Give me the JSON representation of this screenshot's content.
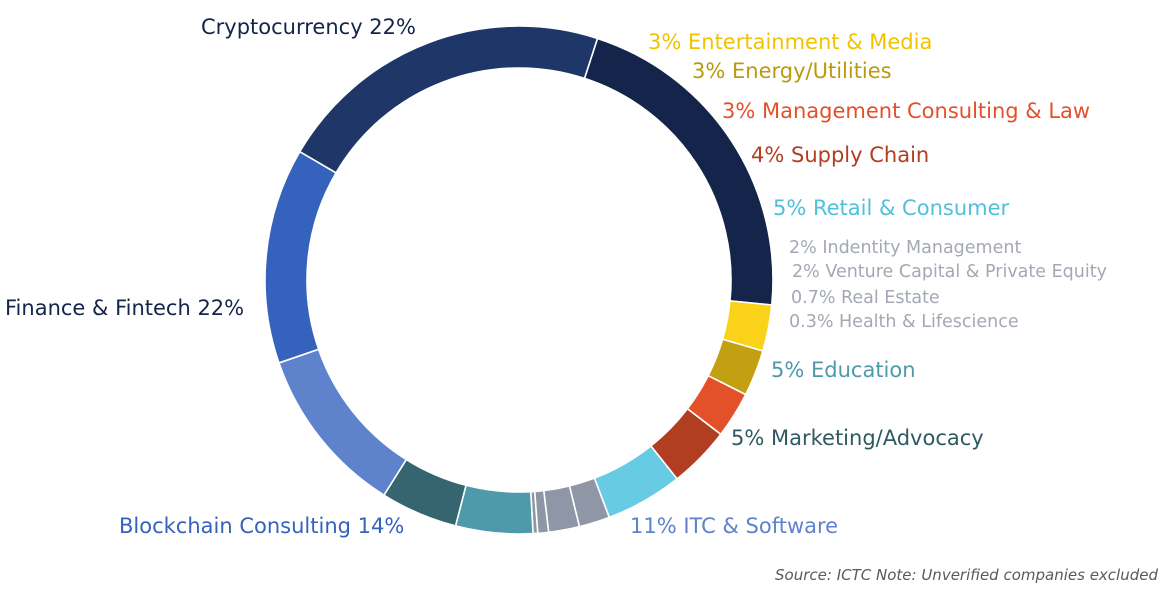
{
  "chart_data": {
    "type": "pie",
    "style": "donut",
    "slices": [
      {
        "label": "Cryptocurrency 22%",
        "value": 22,
        "color": "#15244a"
      },
      {
        "label": "3% Entertainment & Media",
        "value": 3,
        "color": "#fad21a"
      },
      {
        "label": "3% Energy/Utilities",
        "value": 3,
        "color": "#c3a011"
      },
      {
        "label": "3% Management Consulting & Law",
        "value": 3,
        "color": "#e4502a"
      },
      {
        "label": "4% Supply Chain",
        "value": 4,
        "color": "#b13e20"
      },
      {
        "label": "5% Retail & Consumer",
        "value": 5,
        "color": "#67cbe3"
      },
      {
        "label": "2% Indentity Management",
        "value": 2,
        "color": "#8f96a6"
      },
      {
        "label": "2% Venture Capital & Private Equity",
        "value": 2,
        "color": "#8f96a6"
      },
      {
        "label": "0.7% Real Estate",
        "value": 0.7,
        "color": "#8f96a6"
      },
      {
        "label": "0.3% Health & Lifescience",
        "value": 0.3,
        "color": "#8f96a6"
      },
      {
        "label": "5% Education",
        "value": 5,
        "color": "#4e9aab"
      },
      {
        "label": "5% Marketing/Advocacy",
        "value": 5,
        "color": "#356670"
      },
      {
        "label": "11% ITC & Software",
        "value": 11,
        "color": "#5e82cb"
      },
      {
        "label": "Blockchain Consulting 14%",
        "value": 14,
        "color": "#3562bd"
      },
      {
        "label": "Finance & Fintech 22%",
        "value": 22,
        "color": "#1f3668"
      }
    ],
    "label_colors": {
      "Cryptocurrency 22%": "#15244a",
      "3% Entertainment & Media": "#f0c200",
      "3% Energy/Utilities": "#b99a10",
      "3% Management Consulting & Law": "#e4502a",
      "4% Supply Chain": "#b13e20",
      "5% Retail & Consumer": "#4fc0dd",
      "2% Indentity Management": "#a3a8b4",
      "2% Venture Capital & Private Equity": "#a3a8b4",
      "0.7% Real Estate": "#a3a8b4",
      "0.3% Health & Lifescience": "#a3a8b4",
      "5% Education": "#4e9aab",
      "5% Marketing/Advocacy": "#2e5a63",
      "11% ITC & Software": "#5e82cb",
      "Blockchain Consulting 14%": "#3562bd",
      "Finance & Fintech 22%": "#15244a"
    }
  },
  "source_note": "Source: ICTC  Note: Unverified companies excluded"
}
